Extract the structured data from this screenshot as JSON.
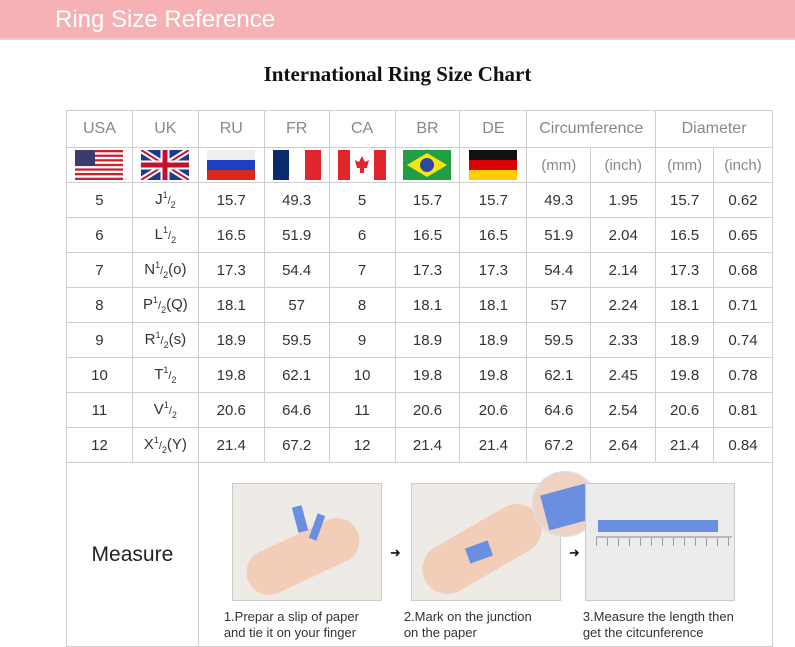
{
  "banner": {
    "title": "Ring Size Reference"
  },
  "chart": {
    "title": "International Ring Size Chart"
  },
  "headers": [
    "USA",
    "UK",
    "RU",
    "FR",
    "CA",
    "BR",
    "DE",
    "Circumference",
    "Diameter"
  ],
  "units": [
    "(mm)",
    "(inch)",
    "(mm)",
    "(inch)"
  ],
  "flags": [
    "us-flag-icon",
    "uk-flag-icon",
    "russia-flag-icon",
    "france-flag-icon",
    "canada-flag-icon",
    "brazil-flag-icon",
    "germany-flag-icon"
  ],
  "rows": [
    {
      "usa": "5",
      "uk_base": "J",
      "uk_suffix": "",
      "ru": "15.7",
      "fr": "49.3",
      "ca": "5",
      "br": "15.7",
      "de": "15.7",
      "circ_mm": "49.3",
      "circ_in": "1.95",
      "dia_mm": "15.7",
      "dia_in": "0.62"
    },
    {
      "usa": "6",
      "uk_base": "L",
      "uk_suffix": "",
      "ru": "16.5",
      "fr": "51.9",
      "ca": "6",
      "br": "16.5",
      "de": "16.5",
      "circ_mm": "51.9",
      "circ_in": "2.04",
      "dia_mm": "16.5",
      "dia_in": "0.65"
    },
    {
      "usa": "7",
      "uk_base": "N",
      "uk_suffix": "(o)",
      "ru": "17.3",
      "fr": "54.4",
      "ca": "7",
      "br": "17.3",
      "de": "17.3",
      "circ_mm": "54.4",
      "circ_in": "2.14",
      "dia_mm": "17.3",
      "dia_in": "0.68"
    },
    {
      "usa": "8",
      "uk_base": "P",
      "uk_suffix": "(Q)",
      "ru": "18.1",
      "fr": "57",
      "ca": "8",
      "br": "18.1",
      "de": "18.1",
      "circ_mm": "57",
      "circ_in": "2.24",
      "dia_mm": "18.1",
      "dia_in": "0.71"
    },
    {
      "usa": "9",
      "uk_base": "R",
      "uk_suffix": "(s)",
      "ru": "18.9",
      "fr": "59.5",
      "ca": "9",
      "br": "18.9",
      "de": "18.9",
      "circ_mm": "59.5",
      "circ_in": "2.33",
      "dia_mm": "18.9",
      "dia_in": "0.74"
    },
    {
      "usa": "10",
      "uk_base": "T",
      "uk_suffix": "",
      "ru": "19.8",
      "fr": "62.1",
      "ca": "10",
      "br": "19.8",
      "de": "19.8",
      "circ_mm": "62.1",
      "circ_in": "2.45",
      "dia_mm": "19.8",
      "dia_in": "0.78"
    },
    {
      "usa": "11",
      "uk_base": "V",
      "uk_suffix": "",
      "ru": "20.6",
      "fr": "64.6",
      "ca": "11",
      "br": "20.6",
      "de": "20.6",
      "circ_mm": "64.6",
      "circ_in": "2.54",
      "dia_mm": "20.6",
      "dia_in": "0.81"
    },
    {
      "usa": "12",
      "uk_base": "X",
      "uk_suffix": "(Y)",
      "ru": "21.4",
      "fr": "67.2",
      "ca": "12",
      "br": "21.4",
      "de": "21.4",
      "circ_mm": "67.2",
      "circ_in": "2.64",
      "dia_mm": "21.4",
      "dia_in": "0.84"
    }
  ],
  "fraction": {
    "num": "1",
    "den": "2"
  },
  "measure": {
    "label": "Measure",
    "steps": [
      {
        "line1": "1.Prepar a slip of paper",
        "line2": "and tie it on your finger"
      },
      {
        "line1": "2.Mark on the junction",
        "line2": "on the paper"
      },
      {
        "line1": "3.Measure the length then",
        "line2": "get the citcunference"
      }
    ]
  },
  "colors": {
    "banner": "#f6b1b4",
    "strip": "#6a8fe0"
  }
}
